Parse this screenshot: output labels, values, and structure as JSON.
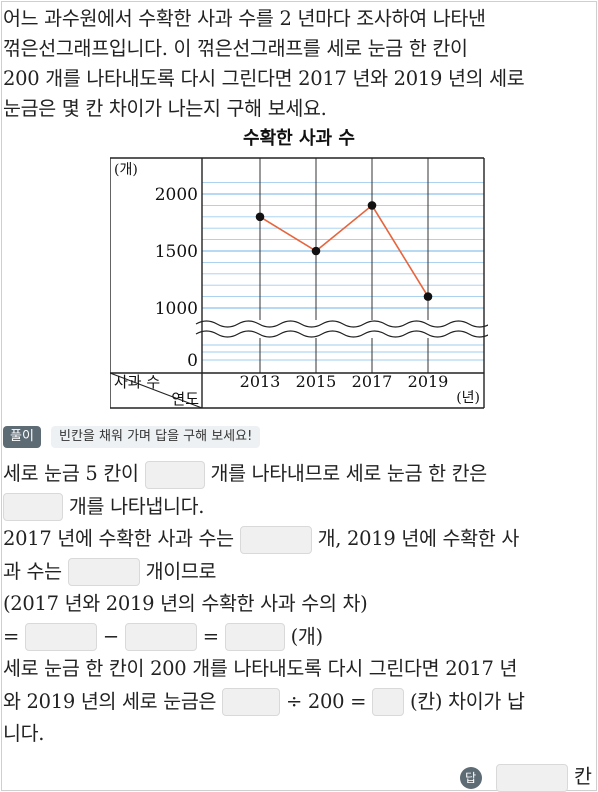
{
  "question": {
    "lines": [
      "어느 과수원에서 수확한 사과 수를 2 년마다 조사하여 나타낸",
      "꺾은선그래프입니다. 이 꺾은선그래프를 세로 눈금 한 칸이",
      "200 개를 나타내도록 다시 그린다면 2017 년와 2019 년의 세로",
      "눈금은 몇 칸 차이가 나는지 구해 보세요."
    ]
  },
  "chart_data": {
    "type": "line",
    "title": "수확한 사과 수",
    "y_unit": "(개)",
    "x_unit": "(년)",
    "corner_top": "사과 수",
    "corner_bottom": "연도",
    "categories": [
      "2013",
      "2015",
      "2017",
      "2019"
    ],
    "values": [
      1800,
      1500,
      1900,
      1100
    ],
    "ytick_labels": [
      "2000",
      "1500",
      "1000",
      "0"
    ],
    "ylim_visible": [
      1000,
      2100
    ],
    "minor_step": 100,
    "axis_break": true,
    "line_color": "#e8643c",
    "grid_color": "#9fcdee"
  },
  "solution": {
    "badge": "풀이",
    "hint": "빈칸을 채워 가며 답을 구해 보세요!",
    "l1a": "세로 눈금 5 칸이",
    "l1b": "개를 나타내므로 세로 눈금 한 칸은",
    "l2b": "개를 나타냅니다.",
    "l3a": "2017 년에 수확한 사과 수는",
    "l3b": "개, 2019 년에 수확한 사",
    "l4a": "과 수는",
    "l4b": "개이므로",
    "l5": "(2017 년와 2019 년의 수확한 사과 수의 차)",
    "eq": "=",
    "minus": "−",
    "eq2": "=",
    "unit_gae": "(개)",
    "l7": "세로 눈금 한 칸이 200 개를 나타내도록 다시 그린다면 2017 년",
    "l8a": "와 2019 년의 세로 눈금은",
    "l8b": "÷ 200 =",
    "l8c": "(칸) 차이가 납",
    "l9": "니다."
  },
  "answer": {
    "badge": "답",
    "unit": "칸"
  }
}
